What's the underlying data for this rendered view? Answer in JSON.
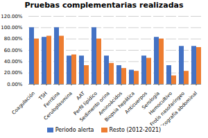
{
  "chart_data": {
    "type": "bar",
    "title": "Pruebas complementarias realizadas",
    "categories": [
      "Coagulación",
      "TSH",
      "Ferritina",
      "Ceruloplasmina",
      "AAT",
      "Perfil lipídico",
      "Sedimento orina",
      "Aminoácidos",
      "Biopsia hepática",
      "Anticuerpos",
      "Serología",
      "Hemocultivo",
      "Frotis nasofaríngeo",
      "Ecografía abdominal"
    ],
    "series": [
      {
        "name": "Periodo alerta",
        "color": "#4472C4",
        "values": [
          1.0,
          0.83,
          1.0,
          0.5,
          0.5,
          1.0,
          0.5,
          0.33,
          0.25,
          0.5,
          0.83,
          0.33,
          0.67,
          0.67
        ]
      },
      {
        "name": "Resto (2012-2021)",
        "color": "#ED7D31",
        "values": [
          0.8,
          0.85,
          0.85,
          0.52,
          0.33,
          0.8,
          0.37,
          0.28,
          0.23,
          0.46,
          0.8,
          0.15,
          0.23,
          0.65
        ]
      }
    ],
    "ylim": [
      0,
      1.2
    ],
    "yticks": [
      {
        "value": 0.0,
        "label": "0.00%"
      },
      {
        "value": 0.2,
        "label": "20.00%"
      },
      {
        "value": 0.4,
        "label": "40.00%"
      },
      {
        "value": 0.6,
        "label": "60.00%"
      },
      {
        "value": 0.8,
        "label": "80.00%"
      },
      {
        "value": 1.0,
        "label": "100.00%"
      },
      {
        "value": 1.2,
        "label": "120.00%"
      }
    ],
    "grid": true,
    "legend": "bottom"
  }
}
